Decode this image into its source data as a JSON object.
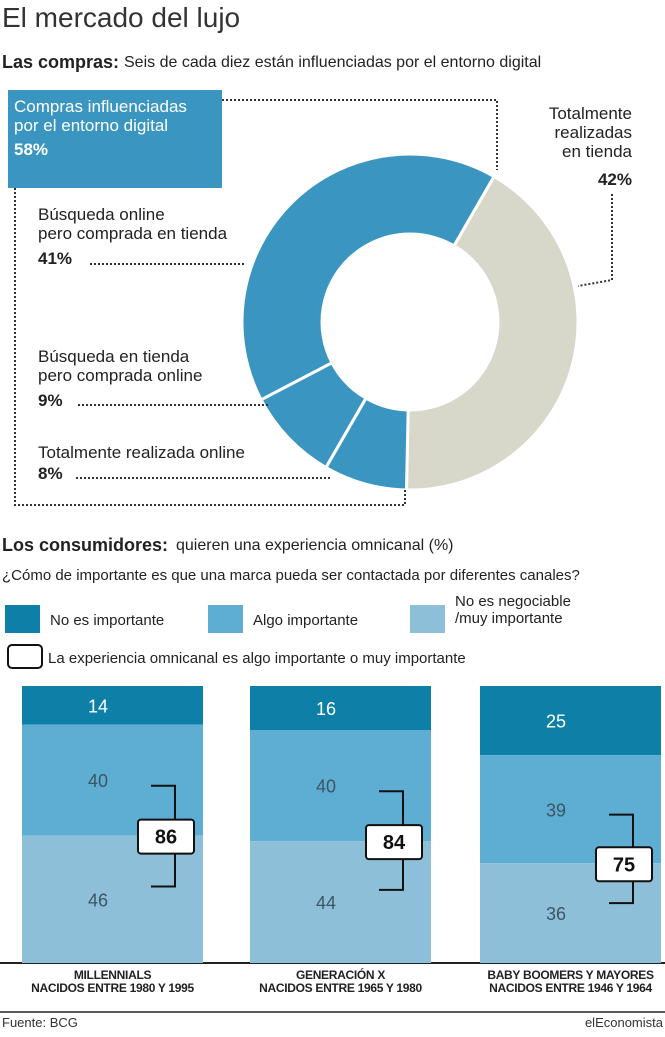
{
  "title": "El mercado del lujo",
  "source": "Fuente: BCG",
  "publisher": "elEconomista",
  "chart_data": [
    {
      "type": "pie",
      "title": "Las compras:",
      "subtitle": "Seis de cada diez están influenciadas por el entorno digital",
      "categories": [
        "Totalmente\nrealizadas\nen tienda",
        "Búsqueda online\npero comprada en tienda",
        "Búsqueda en tienda\npero comprada online",
        "Totalmente realizada online"
      ],
      "values": [
        42,
        41,
        9,
        8
      ],
      "value_labels": [
        "42%",
        "41%",
        "9%",
        "8%"
      ],
      "colors": [
        "#d7d7ca",
        "#3a96c1",
        "#3a96c1",
        "#3a96c1"
      ],
      "group": {
        "label": "Compras influenciadas\npor el entorno digital",
        "value": 58,
        "value_label": "58%",
        "color": "#3a96c1"
      }
    },
    {
      "type": "bar",
      "stacked": true,
      "title": "Los consumidores:",
      "subtitle": "quieren una experiencia omnicanal (%)",
      "question": "¿Cómo de importante es que una marca pueda ser contactada por diferentes canales?",
      "categories": [
        "MILLENNIALS\nNACIDOS ENTRE 1980 Y 1995",
        "GENERACIÓN X\nNACIDOS ENTRE 1965 Y 1980",
        "BABY BOOMERS Y MAYORES\nNACIDOS ENTRE 1946 Y 1964"
      ],
      "series": [
        {
          "name": "No es importante",
          "color": "#0e80a8",
          "values": [
            14,
            16,
            25
          ]
        },
        {
          "name": "Algo importante",
          "color": "#5eadd3",
          "values": [
            40,
            40,
            39
          ]
        },
        {
          "name": "No es negociable\n/muy importante",
          "color": "#8ebfd9",
          "values": [
            46,
            44,
            36
          ]
        }
      ],
      "totals": {
        "name": "La experiencia omnicanal es algo importante o muy importante",
        "values": [
          86,
          84,
          75
        ]
      }
    }
  ]
}
